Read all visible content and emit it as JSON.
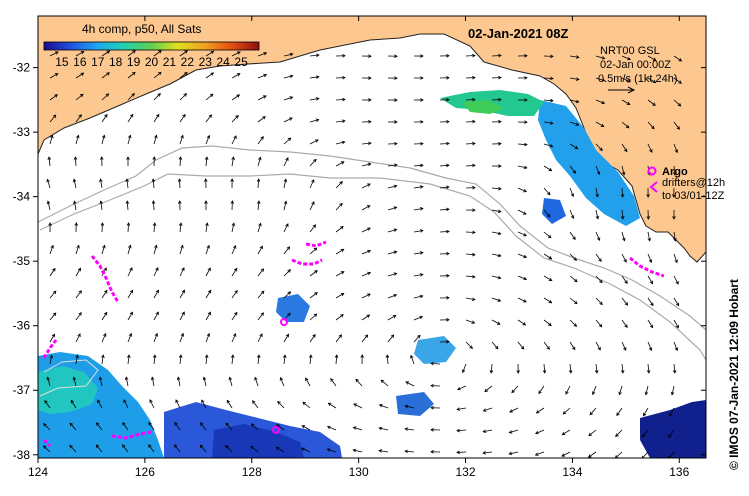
{
  "title": "02-Jan-2021 08Z",
  "colorbar": {
    "title": "4h comp, p50, All Sats",
    "ticks": [
      "15",
      "16",
      "17",
      "18",
      "19",
      "20",
      "21",
      "22",
      "23",
      "24",
      "25"
    ],
    "min": 14,
    "max": 26
  },
  "current_legend": {
    "line1": "NRT00 GSL",
    "line2": "02-Jan 00:00Z",
    "line3": "0.5m/s (1kt 24h)"
  },
  "argo_legend": {
    "argo_label": "Argo",
    "drifters_label": "drifters@12h",
    "drifters_range": "to 03/01-12Z"
  },
  "credit": "© IMOS 07-Jan-2021 12:09 Hobart",
  "x_axis": {
    "ticks": [
      "124",
      "126",
      "128",
      "130",
      "132",
      "134",
      "136"
    ],
    "min": 124,
    "max": 136.5
  },
  "y_axis": {
    "ticks": [
      "-32",
      "-33",
      "-34",
      "-35",
      "-36",
      "-37",
      "-38"
    ],
    "min": -38.05,
    "max": -31.2
  },
  "colors": {
    "land": "#fcc890",
    "coastline": "#222222",
    "contour": "#aaaaaa",
    "argo": "#ff00ff",
    "arrow": "#000000"
  }
}
